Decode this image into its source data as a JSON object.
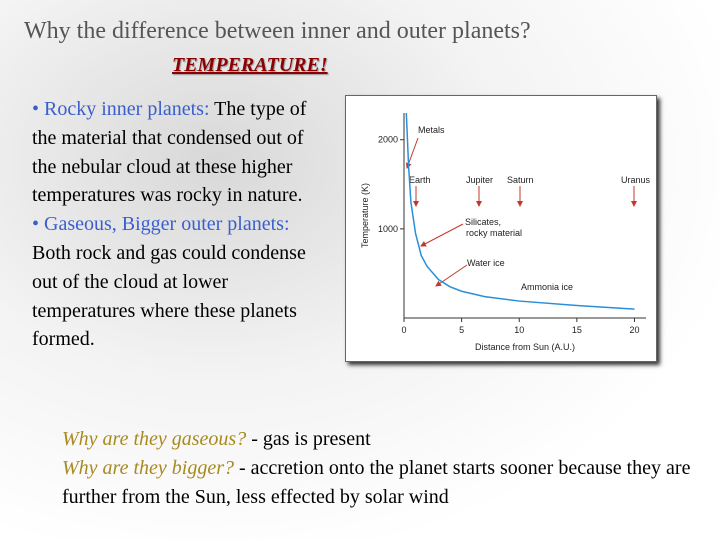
{
  "slide": {
    "title": "Why the difference between inner and outer planets?",
    "subtitle": "TEMPERATURE!",
    "bullets": [
      {
        "label": "• Rocky inner planets:",
        "text": "The type of the material that condensed out of the nebular cloud at these higher temperatures was rocky in nature."
      },
      {
        "label": "• Gaseous, Bigger outer planets:",
        "text": "Both rock and gas could condense out of the cloud at lower temperatures where these planets formed."
      }
    ],
    "notes": [
      {
        "question": "Why are they gaseous?",
        "answer": "- gas is present"
      },
      {
        "question": "Why are they bigger?",
        "answer": "- accretion onto the planet starts sooner because they are further from the Sun, less effected by solar wind"
      }
    ]
  },
  "chart_data": {
    "type": "line",
    "xlabel": "Distance from Sun (A.U.)",
    "ylabel": "Temperature (K)",
    "x": [
      0.2,
      0.4,
      0.6,
      1,
      1.5,
      2,
      3,
      4,
      5,
      7,
      10,
      15,
      20
    ],
    "values": [
      2300,
      1700,
      1300,
      950,
      700,
      580,
      430,
      350,
      300,
      240,
      190,
      140,
      100
    ],
    "color": "#2a8fd8",
    "xlim": [
      0,
      21
    ],
    "ylim": [
      0,
      2300
    ],
    "xticks": [
      0,
      5,
      10,
      15,
      20
    ],
    "yticks": [
      1000,
      2000
    ],
    "annotations": [
      "Metals",
      "Earth",
      "Jupiter",
      "Saturn",
      "Uranus",
      "Silicates,",
      "rocky material",
      "Water ice",
      "Ammonia ice"
    ]
  }
}
